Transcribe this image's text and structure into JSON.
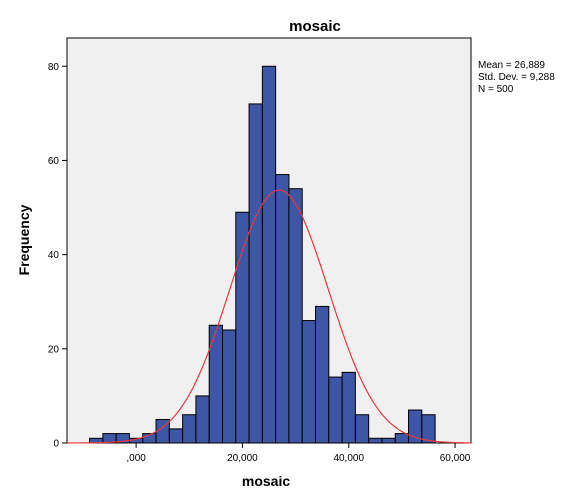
{
  "chart_data": {
    "type": "bar",
    "title": "mosaic",
    "xlabel": "mosaic",
    "ylabel": "Frequency",
    "xlim": [
      -13000,
      63000
    ],
    "ylim": [
      0,
      86
    ],
    "x_ticks": [
      {
        "value": 0,
        "label": ",000"
      },
      {
        "value": 20000,
        "label": "20,000"
      },
      {
        "value": 40000,
        "label": "40,000"
      },
      {
        "value": 60000,
        "label": "60,000"
      }
    ],
    "y_ticks": [
      {
        "value": 0,
        "label": "0"
      },
      {
        "value": 20,
        "label": "20"
      },
      {
        "value": 40,
        "label": "40"
      },
      {
        "value": 60,
        "label": "60"
      },
      {
        "value": 80,
        "label": "80"
      }
    ],
    "bin_width": 2500,
    "bins": [
      {
        "start": -8750,
        "count": 1
      },
      {
        "start": -6250,
        "count": 2
      },
      {
        "start": -3750,
        "count": 2
      },
      {
        "start": -1250,
        "count": 1
      },
      {
        "start": 1250,
        "count": 2
      },
      {
        "start": 3750,
        "count": 5
      },
      {
        "start": 6250,
        "count": 3
      },
      {
        "start": 8750,
        "count": 6
      },
      {
        "start": 11250,
        "count": 10
      },
      {
        "start": 13750,
        "count": 25
      },
      {
        "start": 16250,
        "count": 24
      },
      {
        "start": 18750,
        "count": 49
      },
      {
        "start": 21250,
        "count": 72
      },
      {
        "start": 23750,
        "count": 80
      },
      {
        "start": 26250,
        "count": 57
      },
      {
        "start": 28750,
        "count": 54
      },
      {
        "start": 31250,
        "count": 26
      },
      {
        "start": 33750,
        "count": 29
      },
      {
        "start": 36250,
        "count": 14
      },
      {
        "start": 38750,
        "count": 15
      },
      {
        "start": 41250,
        "count": 6
      },
      {
        "start": 43750,
        "count": 1
      },
      {
        "start": 46250,
        "count": 1
      },
      {
        "start": 48750,
        "count": 2
      },
      {
        "start": 51250,
        "count": 7
      },
      {
        "start": 53750,
        "count": 6
      }
    ],
    "normal_curve": {
      "mean": 26889,
      "std": 9288,
      "n": 500,
      "color": "#e8393c"
    },
    "stats": [
      "Mean = 26,889",
      "Std. Dev. = 9,288",
      "N = 500"
    ],
    "colors": {
      "bar_fill": "#3e56a6",
      "bar_stroke": "#000000",
      "plot_background": "#f0f0f0",
      "curve": "#e8393c"
    },
    "grid": false,
    "legend": "none"
  }
}
